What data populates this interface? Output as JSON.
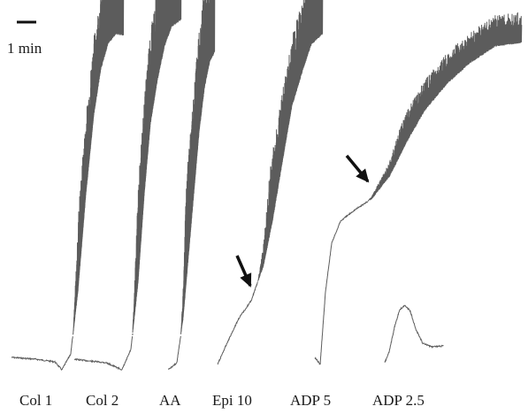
{
  "chart_data": {
    "type": "line",
    "scale_bar": {
      "label": "1 min",
      "minutes": 1
    },
    "colors": {
      "trace": "#5c5c5c",
      "text": "#1a1a1a",
      "arrow": "#111111"
    },
    "arrows": [
      {
        "trace": "Epi 10",
        "points_to": "inflection"
      },
      {
        "trace": "ADP 5",
        "points_to": "inflection"
      }
    ],
    "series": [
      {
        "name": "Col 1"
      },
      {
        "name": "Col 2"
      },
      {
        "name": "AA"
      },
      {
        "name": "Epi 10"
      },
      {
        "name": "ADP 5"
      },
      {
        "name": "ADP 2.5"
      }
    ]
  }
}
